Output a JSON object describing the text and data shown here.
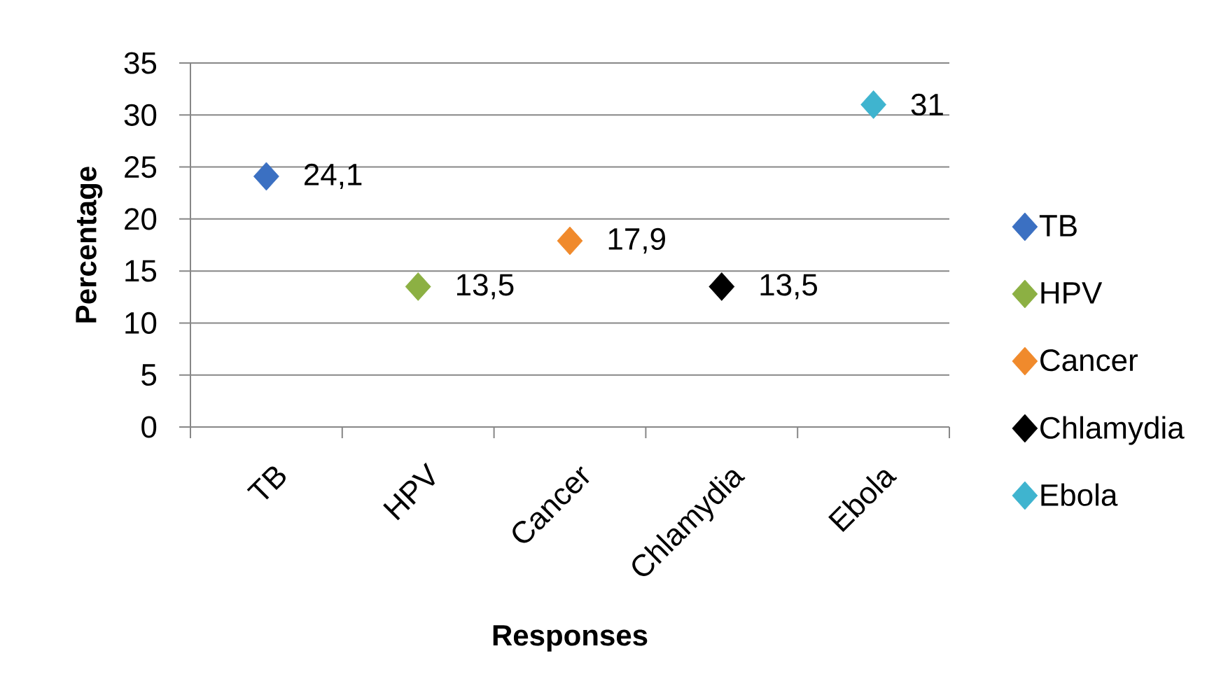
{
  "chart_data": {
    "type": "scatter",
    "xlabel": "Responses",
    "ylabel": "Percentage",
    "categories": [
      "TB",
      "HPV",
      "Cancer",
      "Chlamydia",
      "Ebola"
    ],
    "series": [
      {
        "name": "TB",
        "color": "#3b70c2",
        "values": [
          24.1,
          null,
          null,
          null,
          null
        ],
        "value_labels": [
          "24,1",
          null,
          null,
          null,
          null
        ]
      },
      {
        "name": "HPV",
        "color": "#8cb043",
        "values": [
          null,
          13.5,
          null,
          null,
          null
        ],
        "value_labels": [
          null,
          "13,5",
          null,
          null,
          null
        ]
      },
      {
        "name": "Cancer",
        "color": "#f08a2c",
        "values": [
          null,
          null,
          17.9,
          null,
          null
        ],
        "value_labels": [
          null,
          null,
          "17,9",
          null,
          null
        ]
      },
      {
        "name": "Chlamydia",
        "color": "#000000",
        "values": [
          null,
          null,
          null,
          13.5,
          null
        ],
        "value_labels": [
          null,
          null,
          null,
          "13,5",
          null
        ]
      },
      {
        "name": "Ebola",
        "color": "#3fb4cf",
        "values": [
          null,
          null,
          null,
          null,
          31
        ],
        "value_labels": [
          null,
          null,
          null,
          null,
          "31"
        ]
      }
    ],
    "ylim": [
      0,
      35
    ],
    "yticks": [
      0,
      5,
      10,
      15,
      20,
      25,
      30,
      35
    ],
    "grid": "y",
    "legend": "right",
    "marker": "diamond"
  }
}
